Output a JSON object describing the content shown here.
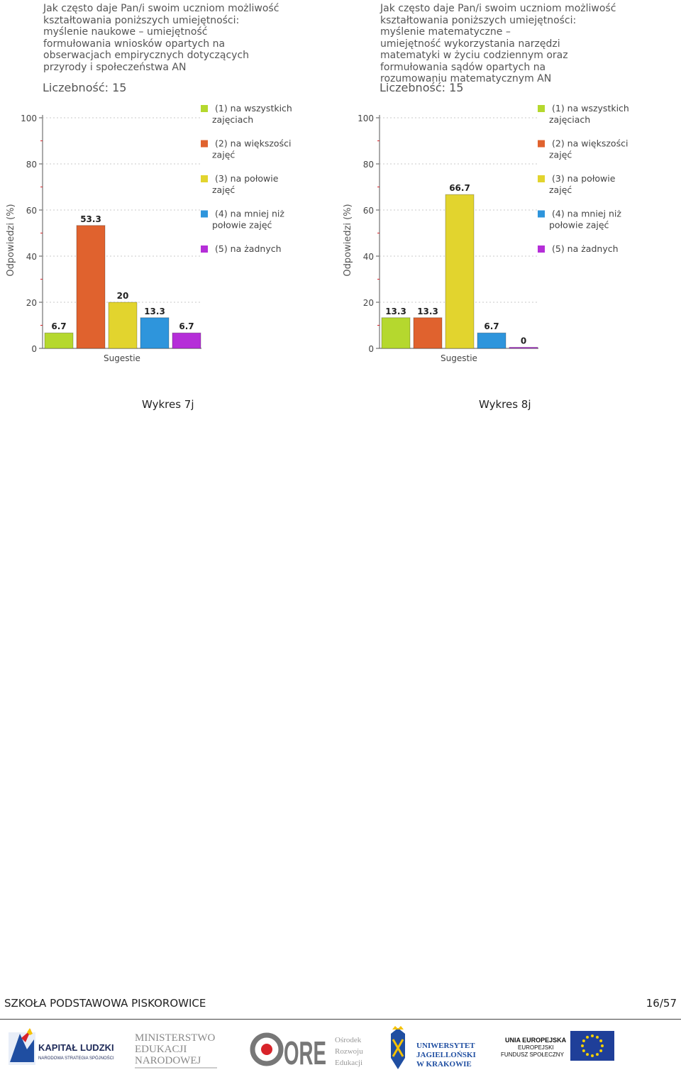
{
  "charts": [
    {
      "id": "7j",
      "question": "Jak często daje Pan/i swoim uczniom możliwość\nkształtowania poniższych umiejętności:\nmyślenie naukowe – umiejętność\nformułowania wniosków opartych na\nobserwacjach empirycznych dotyczących\nprzyrody i społeczeństwa AN",
      "count_label": "Liczebność: 15",
      "caption": "Wykres 7j"
    },
    {
      "id": "8j",
      "question": "Jak często daje Pan/i swoim uczniom możliwość\nkształtowania poniższych umiejętności:\nmyślenie matematyczne –\numiejętność wykorzystania narzędzi\nmatematyki w życiu codziennym oraz\nformułowania sądów opartych na\nrozumowaniu matematycznym AN",
      "count_label": "Liczebność: 15",
      "caption": "Wykres 8j"
    }
  ],
  "chart_data": [
    {
      "type": "bar",
      "title": "Jak często daje Pan/i swoim uczniom możliwość kształtowania poniższych umiejętności: myślenie naukowe – umiejętność formułowania wniosków opartych na obserwacjach empirycznych dotyczących przyrody i społeczeństwa AN",
      "xlabel": "Sugestie",
      "ylabel": "Odpowiedzi (%)",
      "ylim": [
        0,
        100
      ],
      "yticks": [
        0,
        20,
        40,
        60,
        80,
        100
      ],
      "series": [
        {
          "name": "(1) na wszystkich zajęciach",
          "value": 6.7,
          "label": "6.7",
          "color": "#b5d82e"
        },
        {
          "name": "(2) na większości zajęć",
          "value": 53.3,
          "label": "53.3",
          "color": "#e0622e"
        },
        {
          "name": "(3) na połowie zajęć",
          "value": 20,
          "label": "20",
          "color": "#e2d42e"
        },
        {
          "name": "(4) na mniej niż połowie zajęć",
          "value": 13.3,
          "label": "13.3",
          "color": "#2e95dc"
        },
        {
          "name": "(5) na żadnych",
          "value": 6.7,
          "label": "6.7",
          "color": "#b52ed8"
        }
      ],
      "legend": "right"
    },
    {
      "type": "bar",
      "title": "Jak często daje Pan/i swoim uczniom możliwość kształtowania poniższych umiejętności: myślenie matematyczne – umiejętność wykorzystania narzędzi matematyki w życiu codziennym oraz formułowania sądów opartych na rozumowaniu matematycznym AN",
      "xlabel": "Sugestie",
      "ylabel": "Odpowiedzi (%)",
      "ylim": [
        0,
        100
      ],
      "yticks": [
        0,
        20,
        40,
        60,
        80,
        100
      ],
      "series": [
        {
          "name": "(1) na wszystkich zajęciach",
          "value": 13.3,
          "label": "13.3",
          "color": "#b5d82e"
        },
        {
          "name": "(2) na większości zajęć",
          "value": 13.3,
          "label": "13.3",
          "color": "#e0622e"
        },
        {
          "name": "(3) na połowie zajęć",
          "value": 66.7,
          "label": "66.7",
          "color": "#e2d42e"
        },
        {
          "name": "(4) na mniej niż połowie zajęć",
          "value": 6.7,
          "label": "6.7",
          "color": "#2e95dc"
        },
        {
          "name": "(5) na żadnych",
          "value": 0,
          "label": "0",
          "color": "#b52ed8"
        }
      ],
      "legend": "right"
    }
  ],
  "legend_labels": [
    [
      "(1) na wszystkich",
      "zajęciach"
    ],
    [
      "(2) na większości",
      "zajęć"
    ],
    [
      "(3) na połowie",
      "zajęć"
    ],
    [
      "(4) na mniej niż",
      "połowie zajęć"
    ],
    [
      "(5) na żadnych"
    ]
  ],
  "footer": {
    "title": "SZKOŁA PODSTAWOWA PISKOROWICE",
    "page": "16/57"
  },
  "logos": {
    "kapital": {
      "main": "KAPITAŁ LUDZKI",
      "sub": "NARODOWA STRATEGIA SPÓJNOŚCI"
    },
    "men": {
      "lines": [
        "MINISTERSTWO",
        "EDUKACJI",
        "NARODOWEJ"
      ]
    },
    "ore": {
      "main": "ORE",
      "lines": [
        "Ośrodek",
        "Rozwoju",
        "Edukacji"
      ]
    },
    "uj": {
      "lines": [
        "UNIWERSYTET",
        "JAGIELLOŃSKI",
        "W KRAKOWIE"
      ]
    },
    "eu": {
      "lines": [
        "UNIA EUROPEJSKA",
        "EUROPEJSKI",
        "FUNDUSZ SPOŁECZNY"
      ]
    }
  }
}
